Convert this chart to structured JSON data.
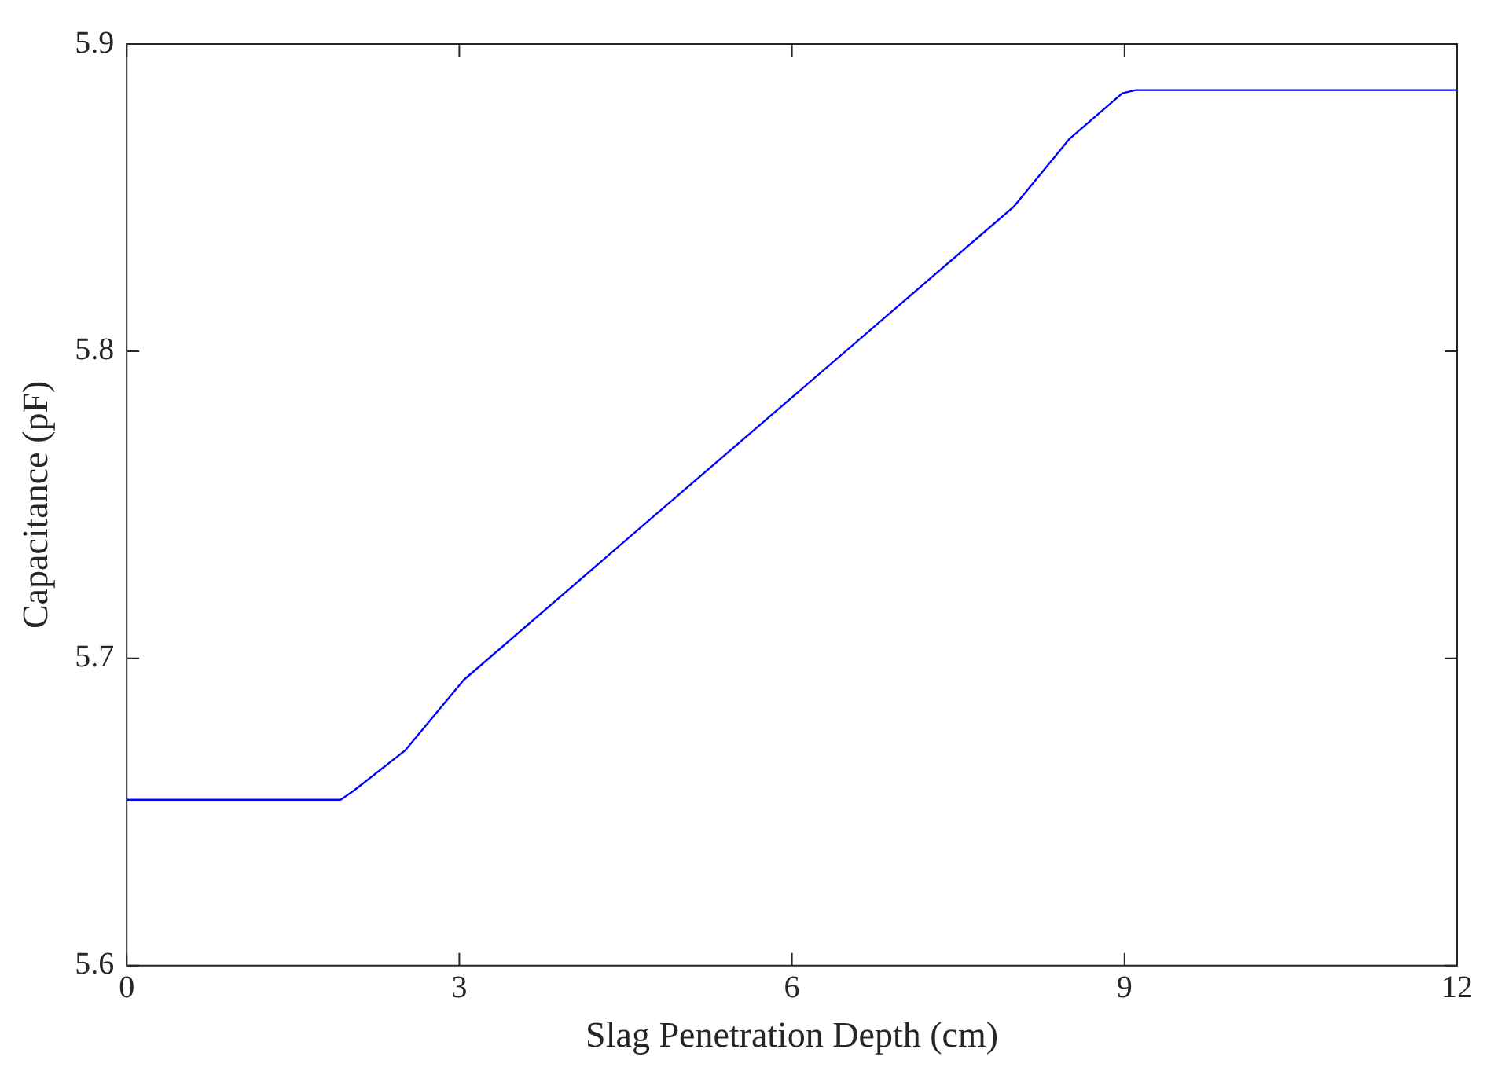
{
  "chart_data": {
    "type": "line",
    "xlabel": "Slag Penetration Depth (cm)",
    "ylabel": "Capacitance (pF)",
    "x": [
      0,
      1.93,
      2.05,
      2.51,
      3.04,
      4.68,
      8.0,
      8.5,
      8.98,
      9.1,
      12
    ],
    "series": [
      {
        "color": "#0000ff",
        "values": [
          5.654,
          5.654,
          5.657,
          5.67,
          5.693,
          5.744,
          5.847,
          5.869,
          5.884,
          5.885,
          5.885
        ]
      }
    ],
    "xlim": [
      0,
      12
    ],
    "xticks": [
      0,
      3,
      6,
      9,
      12
    ],
    "ylim": [
      5.6,
      5.9
    ],
    "yticks": [
      5.6,
      5.7,
      5.8,
      5.9
    ],
    "grid": false,
    "legend": false,
    "marker": "none",
    "line_style": "solid"
  }
}
